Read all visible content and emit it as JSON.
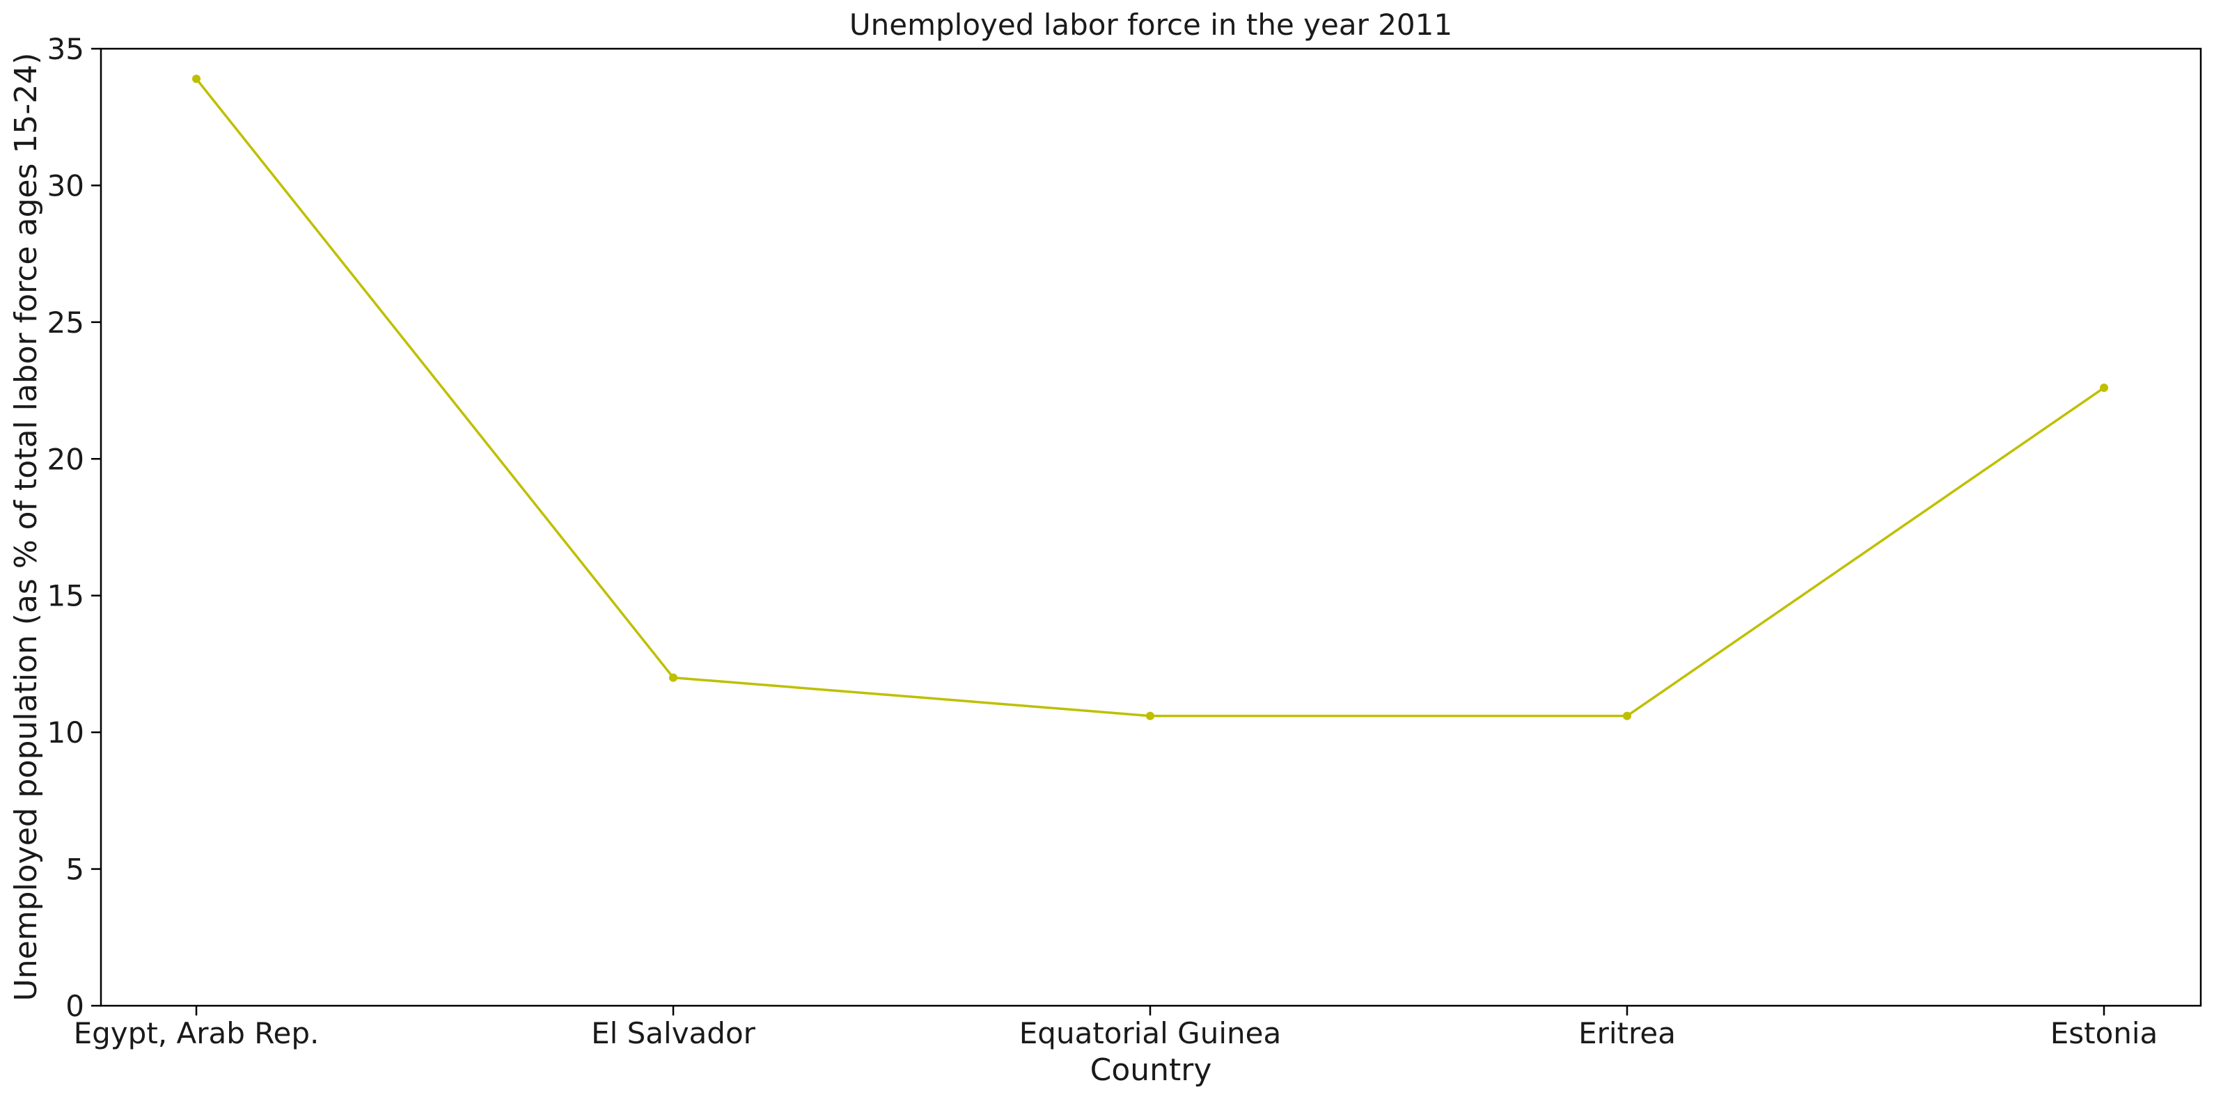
{
  "chart_data": {
    "type": "line",
    "title": "Unemployed labor force in the year 2011",
    "xlabel": "Country",
    "ylabel": "Unemployed population (as % of total labor force ages 15-24)",
    "categories": [
      "Egypt, Arab Rep.",
      "El Salvador",
      "Equatorial Guinea",
      "Eritrea",
      "Estonia"
    ],
    "series": [
      {
        "values": [
          33.9,
          12.0,
          10.6,
          10.6,
          22.6
        ],
        "color": "#bfbf00",
        "marker": "circle"
      }
    ],
    "ylim": [
      0,
      35
    ],
    "yticks": [
      0,
      5,
      10,
      15,
      20,
      25,
      30,
      35
    ],
    "grid": false,
    "legend": "none"
  }
}
